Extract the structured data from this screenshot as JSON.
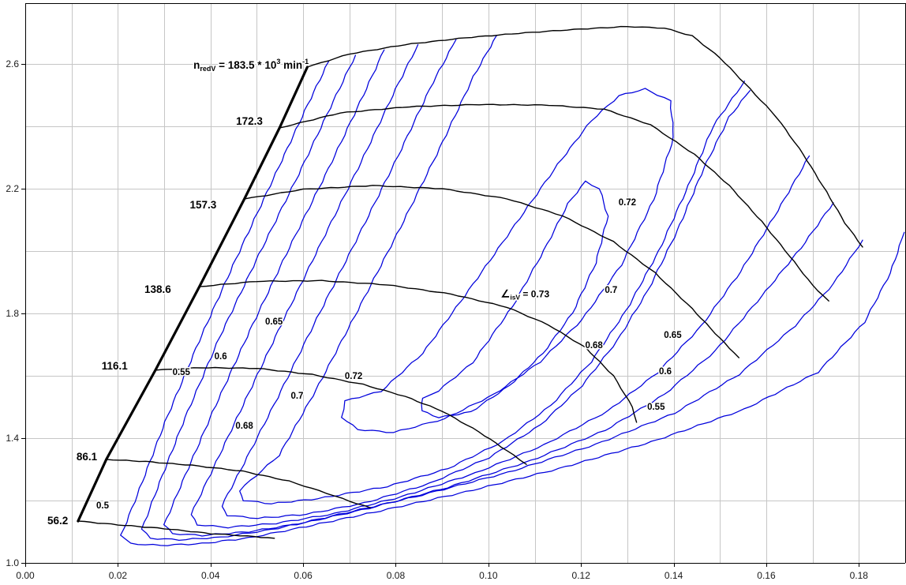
{
  "chart_data": {
    "type": "contour-map",
    "title": "",
    "xlabel": "",
    "ylabel": "",
    "x_axis": {
      "min": 0.0,
      "max": 0.19,
      "grid_step": 0.01,
      "tick_values": [
        0.0,
        0.02,
        0.04,
        0.06,
        0.08,
        0.1,
        0.12,
        0.14,
        0.16,
        0.18
      ],
      "tick_labels": [
        "0.00",
        "0.02",
        "0.04",
        "0.06",
        "0.08",
        "0.10",
        "0.12",
        "0.14",
        "0.16",
        "0.18"
      ]
    },
    "y_axis": {
      "min": 1.0,
      "max": 2.795,
      "grid_step": 0.2,
      "tick_values": [
        1.0,
        1.4,
        1.8,
        2.2,
        2.6
      ],
      "tick_labels": [
        "1.0",
        "1.4",
        "1.8",
        "2.2",
        "2.6"
      ]
    },
    "colors": {
      "background": "#ffffff",
      "grid": "#c6c6c6",
      "axis": "#000000",
      "speed_line": "#000000",
      "contour_line": "#0000dc",
      "label": "#000000"
    },
    "surge_line": {
      "points": [
        [
          0.0114,
          1.134
        ],
        [
          0.0175,
          1.332
        ],
        [
          0.0281,
          1.618
        ],
        [
          0.0376,
          1.886
        ],
        [
          0.0473,
          2.167
        ],
        [
          0.0549,
          2.395
        ],
        [
          0.0609,
          2.59
        ]
      ]
    },
    "speed_lines": [
      {
        "label": "56.2",
        "label_pos": [
          0.007,
          1.137
        ],
        "points": [
          [
            0.0114,
            1.134
          ],
          [
            0.02,
            1.122
          ],
          [
            0.03,
            1.11
          ],
          [
            0.04,
            1.094
          ],
          [
            0.048,
            1.086
          ],
          [
            0.0538,
            1.079
          ]
        ]
      },
      {
        "label": "86.1",
        "label_pos": [
          0.0133,
          1.342
        ],
        "points": [
          [
            0.0175,
            1.332
          ],
          [
            0.026,
            1.325
          ],
          [
            0.036,
            1.313
          ],
          [
            0.047,
            1.294
          ],
          [
            0.057,
            1.262
          ],
          [
            0.065,
            1.224
          ],
          [
            0.07,
            1.198
          ],
          [
            0.0745,
            1.177
          ]
        ]
      },
      {
        "label": "116.1",
        "label_pos": [
          0.0193,
          1.633
        ],
        "points": [
          [
            0.0281,
            1.618
          ],
          [
            0.038,
            1.626
          ],
          [
            0.05,
            1.624
          ],
          [
            0.062,
            1.604
          ],
          [
            0.073,
            1.572
          ],
          [
            0.082,
            1.534
          ],
          [
            0.09,
            1.487
          ],
          [
            0.098,
            1.42
          ],
          [
            0.104,
            1.36
          ],
          [
            0.1082,
            1.316
          ]
        ]
      },
      {
        "label": "138.6",
        "label_pos": [
          0.0286,
          1.878
        ],
        "points": [
          [
            0.0376,
            1.886
          ],
          [
            0.05,
            1.903
          ],
          [
            0.064,
            1.905
          ],
          [
            0.078,
            1.892
          ],
          [
            0.092,
            1.862
          ],
          [
            0.104,
            1.82
          ],
          [
            0.113,
            1.763
          ],
          [
            0.121,
            1.69
          ],
          [
            0.127,
            1.6
          ],
          [
            0.1311,
            1.5
          ],
          [
            0.132,
            1.451
          ]
        ]
      },
      {
        "label": "157.3",
        "label_pos": [
          0.0384,
          2.15
        ],
        "points": [
          [
            0.0473,
            2.167
          ],
          [
            0.06,
            2.198
          ],
          [
            0.075,
            2.21
          ],
          [
            0.09,
            2.2
          ],
          [
            0.104,
            2.168
          ],
          [
            0.116,
            2.113
          ],
          [
            0.127,
            2.03
          ],
          [
            0.136,
            1.93
          ],
          [
            0.144,
            1.815
          ],
          [
            0.15,
            1.72
          ],
          [
            0.1541,
            1.658
          ]
        ]
      },
      {
        "label": "172.3",
        "label_pos": [
          0.0484,
          2.418
        ],
        "points": [
          [
            0.0549,
            2.395
          ],
          [
            0.068,
            2.443
          ],
          [
            0.083,
            2.463
          ],
          [
            0.098,
            2.47
          ],
          [
            0.113,
            2.468
          ],
          [
            0.125,
            2.455
          ],
          [
            0.135,
            2.405
          ],
          [
            0.1445,
            2.31
          ],
          [
            0.152,
            2.21
          ],
          [
            0.159,
            2.095
          ],
          [
            0.165,
            1.985
          ],
          [
            0.17,
            1.89
          ],
          [
            0.1735,
            1.84
          ]
        ]
      },
      {
        "label": "",
        "label_pos": null,
        "points": [
          [
            0.0609,
            2.59
          ],
          [
            0.07,
            2.632
          ],
          [
            0.082,
            2.662
          ],
          [
            0.095,
            2.684
          ],
          [
            0.108,
            2.7
          ],
          [
            0.12,
            2.712
          ],
          [
            0.13,
            2.72
          ],
          [
            0.138,
            2.715
          ],
          [
            0.144,
            2.69
          ],
          [
            0.15,
            2.62
          ],
          [
            0.1565,
            2.52
          ],
          [
            0.1622,
            2.43
          ],
          [
            0.168,
            2.31
          ],
          [
            0.173,
            2.19
          ],
          [
            0.177,
            2.09
          ],
          [
            0.1808,
            2.013
          ]
        ]
      }
    ],
    "speed_annotation": {
      "prefix": "n",
      "subscript": "redV",
      "equals": " = 183.5 * 10",
      "exponent": "3",
      "unit": " min",
      "unit_exponent": "-1",
      "pos": [
        0.0612,
        2.585
      ]
    },
    "efficiency_contours": [
      {
        "value": 0.5,
        "points": [
          [
            0.0655,
            2.608
          ],
          [
            0.061,
            2.47
          ],
          [
            0.0535,
            2.23
          ],
          [
            0.0455,
            1.975
          ],
          [
            0.0375,
            1.71
          ],
          [
            0.0302,
            1.452
          ],
          [
            0.0242,
            1.218
          ],
          [
            0.0207,
            1.088
          ],
          [
            0.0227,
            1.062
          ],
          [
            0.0292,
            1.056
          ],
          [
            0.0382,
            1.062
          ],
          [
            0.0482,
            1.08
          ],
          [
            0.0592,
            1.112
          ],
          [
            0.0752,
            1.162
          ],
          [
            0.0952,
            1.228
          ],
          [
            0.1152,
            1.302
          ],
          [
            0.1352,
            1.388
          ],
          [
            0.1552,
            1.492
          ],
          [
            0.1712,
            1.612
          ],
          [
            0.1812,
            1.772
          ],
          [
            0.1868,
            1.93
          ],
          [
            0.1898,
            2.06
          ]
        ]
      },
      {
        "value": 0.55,
        "points": [
          [
            0.0713,
            2.628
          ],
          [
            0.0665,
            2.48
          ],
          [
            0.059,
            2.245
          ],
          [
            0.0505,
            1.99
          ],
          [
            0.042,
            1.725
          ],
          [
            0.0345,
            1.465
          ],
          [
            0.0285,
            1.238
          ],
          [
            0.0252,
            1.108
          ],
          [
            0.027,
            1.079
          ],
          [
            0.0332,
            1.074
          ],
          [
            0.0422,
            1.082
          ],
          [
            0.0532,
            1.107
          ],
          [
            0.0662,
            1.15
          ],
          [
            0.0842,
            1.212
          ],
          [
            0.1042,
            1.29
          ],
          [
            0.1232,
            1.38
          ],
          [
            0.1402,
            1.48
          ],
          [
            0.1542,
            1.605
          ],
          [
            0.1662,
            1.76
          ],
          [
            0.1745,
            1.895
          ],
          [
            0.1808,
            2.035
          ]
        ]
      },
      {
        "value": 0.6,
        "points": [
          [
            0.0775,
            2.645
          ],
          [
            0.073,
            2.5
          ],
          [
            0.0655,
            2.265
          ],
          [
            0.057,
            2.01
          ],
          [
            0.0485,
            1.745
          ],
          [
            0.0405,
            1.485
          ],
          [
            0.034,
            1.262
          ],
          [
            0.03,
            1.122
          ],
          [
            0.0318,
            1.094
          ],
          [
            0.0382,
            1.088
          ],
          [
            0.0482,
            1.1
          ],
          [
            0.0602,
            1.128
          ],
          [
            0.0742,
            1.175
          ],
          [
            0.0912,
            1.242
          ],
          [
            0.1092,
            1.328
          ],
          [
            0.1252,
            1.425
          ],
          [
            0.138,
            1.54
          ],
          [
            0.149,
            1.68
          ],
          [
            0.159,
            1.855
          ],
          [
            0.1675,
            2.01
          ],
          [
            0.1745,
            2.155
          ]
        ]
      },
      {
        "value": 0.65,
        "points": [
          [
            0.0848,
            2.662
          ],
          [
            0.08,
            2.52
          ],
          [
            0.0725,
            2.285
          ],
          [
            0.064,
            2.03
          ],
          [
            0.0553,
            1.765
          ],
          [
            0.047,
            1.505
          ],
          [
            0.04,
            1.285
          ],
          [
            0.0358,
            1.155
          ],
          [
            0.0372,
            1.122
          ],
          [
            0.0438,
            1.114
          ],
          [
            0.0542,
            1.127
          ],
          [
            0.0668,
            1.158
          ],
          [
            0.0812,
            1.212
          ],
          [
            0.0972,
            1.288
          ],
          [
            0.112,
            1.378
          ],
          [
            0.1258,
            1.487
          ],
          [
            0.1365,
            1.61
          ],
          [
            0.146,
            1.76
          ],
          [
            0.1545,
            1.935
          ],
          [
            0.1625,
            2.13
          ],
          [
            0.1693,
            2.305
          ]
        ]
      },
      {
        "value": 0.68,
        "points": [
          [
            0.093,
            2.678
          ],
          [
            0.088,
            2.54
          ],
          [
            0.0805,
            2.305
          ],
          [
            0.072,
            2.05
          ],
          [
            0.063,
            1.785
          ],
          [
            0.0545,
            1.53
          ],
          [
            0.0472,
            1.318
          ],
          [
            0.0424,
            1.182
          ],
          [
            0.0437,
            1.152
          ],
          [
            0.0502,
            1.143
          ],
          [
            0.0607,
            1.156
          ],
          [
            0.0732,
            1.192
          ],
          [
            0.0872,
            1.254
          ],
          [
            0.1002,
            1.338
          ],
          [
            0.1112,
            1.442
          ],
          [
            0.1202,
            1.568
          ],
          [
            0.1278,
            1.712
          ],
          [
            0.1345,
            1.875
          ],
          [
            0.1408,
            2.065
          ],
          [
            0.1465,
            2.265
          ],
          [
            0.152,
            2.43
          ],
          [
            0.1565,
            2.515
          ]
        ]
      },
      {
        "value": 0.7,
        "points": [
          [
            0.1018,
            2.692
          ],
          [
            0.0968,
            2.56
          ],
          [
            0.0895,
            2.33
          ],
          [
            0.081,
            2.075
          ],
          [
            0.0718,
            1.81
          ],
          [
            0.0628,
            1.555
          ],
          [
            0.0548,
            1.345
          ],
          [
            0.0462,
            1.232
          ],
          [
            0.0472,
            1.2
          ],
          [
            0.0532,
            1.19
          ],
          [
            0.0632,
            1.206
          ],
          [
            0.0782,
            1.245
          ],
          [
            0.0912,
            1.302
          ],
          [
            0.1032,
            1.39
          ],
          [
            0.1135,
            1.505
          ],
          [
            0.1222,
            1.645
          ],
          [
            0.1298,
            1.81
          ],
          [
            0.1368,
            2.0
          ],
          [
            0.1432,
            2.21
          ],
          [
            0.1485,
            2.4
          ],
          [
            0.1553,
            2.545
          ]
        ]
      },
      {
        "value": 0.72,
        "points": [
          [
            0.069,
            1.52
          ],
          [
            0.0684,
            1.466
          ],
          [
            0.0718,
            1.428
          ],
          [
            0.0795,
            1.418
          ],
          [
            0.0905,
            1.462
          ],
          [
            0.1012,
            1.54
          ],
          [
            0.1112,
            1.645
          ],
          [
            0.1202,
            1.78
          ],
          [
            0.1287,
            1.955
          ],
          [
            0.1357,
            2.165
          ],
          [
            0.14,
            2.365
          ],
          [
            0.1393,
            2.482
          ],
          [
            0.1338,
            2.52
          ],
          [
            0.1282,
            2.498
          ],
          [
            0.1222,
            2.418
          ],
          [
            0.115,
            2.278
          ],
          [
            0.1058,
            2.085
          ],
          [
            0.0958,
            1.875
          ],
          [
            0.0858,
            1.672
          ],
          [
            0.0768,
            1.55
          ],
          [
            0.069,
            1.52
          ]
        ]
      },
      {
        "value": 0.73,
        "points": [
          [
            0.0858,
            1.528
          ],
          [
            0.0856,
            1.488
          ],
          [
            0.0893,
            1.466
          ],
          [
            0.0962,
            1.484
          ],
          [
            0.1045,
            1.568
          ],
          [
            0.1118,
            1.672
          ],
          [
            0.1182,
            1.802
          ],
          [
            0.1232,
            1.962
          ],
          [
            0.1258,
            2.112
          ],
          [
            0.124,
            2.2
          ],
          [
            0.1209,
            2.223
          ],
          [
            0.1172,
            2.152
          ],
          [
            0.112,
            2.002
          ],
          [
            0.1052,
            1.822
          ],
          [
            0.0966,
            1.642
          ],
          [
            0.0892,
            1.552
          ],
          [
            0.0858,
            1.528
          ]
        ]
      }
    ],
    "efficiency_labels": [
      {
        "text": "0.5",
        "pos": [
          0.0167,
          1.185
        ]
      },
      {
        "text": "0.55",
        "pos": [
          0.0337,
          1.613
        ]
      },
      {
        "text": "0.6",
        "pos": [
          0.0422,
          1.663
        ]
      },
      {
        "text": "0.65",
        "pos": [
          0.0537,
          1.775
        ]
      },
      {
        "text": "0.68",
        "pos": [
          0.0473,
          1.44
        ]
      },
      {
        "text": "0.7",
        "pos": [
          0.0587,
          1.537
        ]
      },
      {
        "text": "0.72",
        "pos": [
          0.0709,
          1.6
        ]
      },
      {
        "text": "0.72",
        "pos": [
          0.13,
          2.157
        ]
      },
      {
        "text": "0.7",
        "pos": [
          0.1265,
          1.876
        ]
      },
      {
        "text": "0.68",
        "pos": [
          0.1228,
          1.699
        ]
      },
      {
        "text": "0.65",
        "pos": [
          0.1398,
          1.732
        ]
      },
      {
        "text": "0.6",
        "pos": [
          0.1382,
          1.615
        ]
      },
      {
        "text": "0.55",
        "pos": [
          0.1362,
          1.501
        ]
      }
    ],
    "best_efficiency_label": {
      "symbol": "∠",
      "subscript": "isV",
      "text": " = 0.73",
      "pos": [
        0.1027,
        1.862
      ]
    }
  }
}
